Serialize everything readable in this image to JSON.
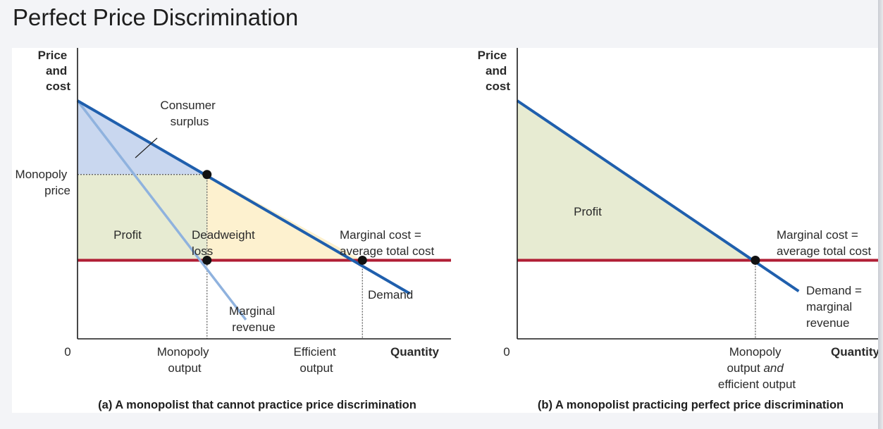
{
  "slide": {
    "title": "Perfect Price Discrimination"
  },
  "colors": {
    "demand": "#1f5fad",
    "marginal_revenue": "#8fb2de",
    "marginal_cost": "#b01e34",
    "consumer_surplus": "#c9d7ef",
    "profit": "#e7ebd2",
    "deadweight_loss": "#fdf1cf",
    "axis": "#1a1a1a",
    "dots": "#111111"
  },
  "chart_data": [
    {
      "type": "area",
      "caption": "(a) A monopolist that cannot practice price discrimination",
      "y_label": [
        "Price",
        "and",
        "cost"
      ],
      "x_label": "Quantity",
      "origin_label": "0",
      "y_ticks": {
        "monopoly_price": [
          "Monopoly",
          "price"
        ]
      },
      "x_ticks": {
        "monopoly_output": [
          "Monopoly",
          "output"
        ],
        "efficient_output": [
          "Efficient",
          "output"
        ]
      },
      "xlim": [
        0,
        100
      ],
      "ylim": [
        0,
        100
      ],
      "series": [
        {
          "name": "Demand",
          "label": [
            "Demand"
          ],
          "x": [
            0,
            77
          ],
          "y": [
            100,
            19
          ]
        },
        {
          "name": "Marginal revenue",
          "label": [
            "Marginal",
            "revenue"
          ],
          "x": [
            0,
            39
          ],
          "y": [
            100,
            8
          ]
        },
        {
          "name": "Marginal cost = average total cost",
          "label": [
            "Marginal cost =",
            "average total cost"
          ],
          "x": [
            0,
            100
          ],
          "y": [
            33,
            33
          ]
        }
      ],
      "points": [
        {
          "name": "monopoly-price-point",
          "x": 30,
          "y": 69
        },
        {
          "name": "monopoly-mc-point",
          "x": 30,
          "y": 33
        },
        {
          "name": "efficient-point",
          "x": 66,
          "y": 33
        }
      ],
      "regions": [
        {
          "name": "consumer-surplus",
          "label": [
            "Consumer",
            "surplus"
          ]
        },
        {
          "name": "profit",
          "label": [
            "Profit"
          ]
        },
        {
          "name": "deadweight-loss",
          "label": [
            "Deadweight",
            "loss"
          ]
        }
      ]
    },
    {
      "type": "area",
      "caption": "(b) A monopolist practicing perfect price discrimination",
      "y_label": [
        "Price",
        "and",
        "cost"
      ],
      "x_label": "Quantity",
      "origin_label": "0",
      "x_ticks": {
        "monopoly_output_and_efficient_output": [
          "Monopoly",
          "output",
          "and",
          "efficient output"
        ]
      },
      "xlim": [
        0,
        100
      ],
      "ylim": [
        0,
        100
      ],
      "series": [
        {
          "name": "Demand = marginal revenue",
          "label": [
            "Demand =",
            "marginal",
            "revenue"
          ],
          "x": [
            0,
            78
          ],
          "y": [
            100,
            20
          ]
        },
        {
          "name": "Marginal cost = average total cost",
          "label": [
            "Marginal cost =",
            "average total cost"
          ],
          "x": [
            0,
            100
          ],
          "y": [
            33,
            33
          ]
        }
      ],
      "points": [
        {
          "name": "efficient-point",
          "x": 66,
          "y": 33
        }
      ],
      "regions": [
        {
          "name": "profit",
          "label": [
            "Profit"
          ]
        }
      ]
    }
  ]
}
